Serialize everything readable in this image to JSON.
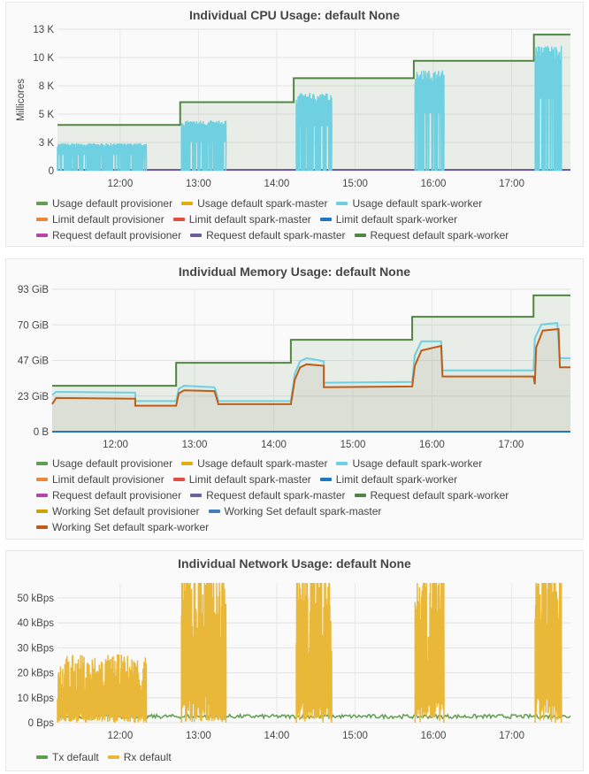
{
  "colors": {
    "green": "#629e51",
    "yellow": "#e5ac0e",
    "cyan": "#6ed0e0",
    "orange": "#ef843c",
    "red": "#e24d42",
    "blue": "#1f78c1",
    "magenta": "#ba43a9",
    "purple": "#705da0",
    "dkgreen": "#508642",
    "gold": "#cca300",
    "steel": "#447ebc",
    "rust": "#c15c17",
    "netYellow": "#eab839"
  },
  "chart_data": [
    {
      "type": "line",
      "title": "Individual CPU Usage: default None",
      "ylabel": "Millicores",
      "ylim": [
        0,
        13000
      ],
      "yticks": [
        "0",
        "3 K",
        "5 K",
        "8 K",
        "10 K",
        "13 K"
      ],
      "xticks": [
        "12:00",
        "13:00",
        "14:00",
        "15:00",
        "16:00",
        "17:00"
      ],
      "xrange": [
        "11:12",
        "17:45"
      ],
      "legend": [
        [
          {
            "name": "Usage default provisioner",
            "color": "green"
          },
          {
            "name": "Usage default spark-master",
            "color": "yellow"
          },
          {
            "name": "Usage default spark-worker",
            "color": "cyan"
          }
        ],
        [
          {
            "name": "Limit default provisioner",
            "color": "orange"
          },
          {
            "name": "Limit default spark-master",
            "color": "red"
          },
          {
            "name": "Limit default spark-worker",
            "color": "blue"
          }
        ],
        [
          {
            "name": "Request default provisioner",
            "color": "magenta"
          },
          {
            "name": "Request default spark-master",
            "color": "purple"
          },
          {
            "name": "Request default spark-worker",
            "color": "dkgreen"
          }
        ]
      ],
      "series": [
        {
          "name": "Request default spark-worker",
          "color": "dkgreen",
          "fill": true,
          "steps": [
            [
              "11:12",
              4200
            ],
            [
              "12:46",
              6300
            ],
            [
              "14:13",
              8500
            ],
            [
              "15:45",
              10100
            ],
            [
              "17:17",
              12500
            ],
            [
              "17:45",
              12500
            ]
          ]
        },
        {
          "name": "Usage default spark-worker",
          "color": "cyan",
          "bursts": [
            [
              "11:12",
              "12:20",
              2400
            ],
            [
              "12:47",
              "13:21",
              4400
            ],
            [
              "14:15",
              "14:42",
              6800
            ],
            [
              "15:46",
              "16:08",
              8800
            ],
            [
              "17:18",
              "17:38",
              11000
            ]
          ]
        }
      ]
    },
    {
      "type": "line",
      "title": "Individual Memory Usage: default None",
      "ylabel": "",
      "ylim": [
        0,
        93
      ],
      "yticks": [
        "0 B",
        "23 GiB",
        "47 GiB",
        "70 GiB",
        "93 GiB"
      ],
      "xticks": [
        "12:00",
        "13:00",
        "14:00",
        "15:00",
        "16:00",
        "17:00"
      ],
      "xrange": [
        "11:12",
        "17:45"
      ],
      "legend": [
        [
          {
            "name": "Usage default provisioner",
            "color": "green"
          },
          {
            "name": "Usage default spark-master",
            "color": "yellow"
          },
          {
            "name": "Usage default spark-worker",
            "color": "cyan"
          }
        ],
        [
          {
            "name": "Limit default provisioner",
            "color": "orange"
          },
          {
            "name": "Limit default spark-master",
            "color": "red"
          },
          {
            "name": "Limit default spark-worker",
            "color": "blue"
          }
        ],
        [
          {
            "name": "Request default provisioner",
            "color": "magenta"
          },
          {
            "name": "Request default spark-master",
            "color": "purple"
          },
          {
            "name": "Request default spark-worker",
            "color": "dkgreen"
          }
        ],
        [
          {
            "name": "Working Set default provisioner",
            "color": "gold"
          },
          {
            "name": "Working Set default spark-master",
            "color": "steel"
          }
        ],
        [
          {
            "name": "Working Set default spark-worker",
            "color": "rust"
          }
        ]
      ],
      "series": [
        {
          "name": "Request default spark-worker",
          "color": "dkgreen",
          "fill": true,
          "steps": [
            [
              "11:12",
              30
            ],
            [
              "12:46",
              45
            ],
            [
              "14:13",
              60
            ],
            [
              "15:45",
              75
            ],
            [
              "17:17",
              89
            ],
            [
              "17:45",
              89
            ]
          ]
        },
        {
          "name": "Usage default spark-worker",
          "color": "cyan",
          "points": [
            [
              "11:12",
              24
            ],
            [
              "11:15",
              26
            ],
            [
              "12:15",
              25.5
            ],
            [
              "12:15",
              20
            ],
            [
              "12:46",
              20
            ],
            [
              "12:48",
              28
            ],
            [
              "12:52",
              30
            ],
            [
              "13:15",
              29
            ],
            [
              "13:16",
              27
            ],
            [
              "13:18",
              20
            ],
            [
              "14:13",
              20
            ],
            [
              "14:16",
              38
            ],
            [
              "14:20",
              46
            ],
            [
              "14:25",
              48
            ],
            [
              "14:38",
              46
            ],
            [
              "14:38",
              32
            ],
            [
              "15:45",
              32.5
            ],
            [
              "15:47",
              50
            ],
            [
              "15:52",
              59
            ],
            [
              "16:07",
              59
            ],
            [
              "16:08",
              40
            ],
            [
              "17:17",
              40
            ],
            [
              "17:18",
              61
            ],
            [
              "17:23",
              70
            ],
            [
              "17:35",
              71
            ],
            [
              "17:37",
              48
            ],
            [
              "17:45",
              48
            ]
          ]
        },
        {
          "name": "Working Set default spark-worker",
          "color": "rust",
          "points": [
            [
              "11:12",
              18
            ],
            [
              "11:15",
              22
            ],
            [
              "12:15",
              21.5
            ],
            [
              "12:15",
              17
            ],
            [
              "12:46",
              17
            ],
            [
              "12:48",
              25
            ],
            [
              "12:52",
              27
            ],
            [
              "13:15",
              26.5
            ],
            [
              "13:16",
              24
            ],
            [
              "13:18",
              18
            ],
            [
              "14:13",
              18
            ],
            [
              "14:16",
              34
            ],
            [
              "14:20",
              42
            ],
            [
              "14:25",
              44
            ],
            [
              "14:38",
              43
            ],
            [
              "14:38",
              29
            ],
            [
              "15:45",
              29.5
            ],
            [
              "15:47",
              43
            ],
            [
              "15:52",
              53
            ],
            [
              "16:07",
              56
            ],
            [
              "16:08",
              36
            ],
            [
              "17:17",
              36
            ],
            [
              "17:18",
              31
            ],
            [
              "17:19",
              55
            ],
            [
              "17:24",
              66
            ],
            [
              "17:36",
              67
            ],
            [
              "17:37",
              42
            ],
            [
              "17:45",
              42
            ]
          ]
        },
        {
          "name": "Limit default spark-worker",
          "color": "blue",
          "points": [
            [
              "11:12",
              0
            ],
            [
              "17:45",
              0
            ]
          ]
        }
      ]
    },
    {
      "type": "line",
      "title": "Individual Network Usage: default None",
      "ylabel": "",
      "ylim": [
        0,
        56
      ],
      "yticks": [
        "0 Bps",
        "10 kBps",
        "20 kBps",
        "30 kBps",
        "40 kBps",
        "50 kBps"
      ],
      "ytickvals": [
        0,
        10,
        20,
        30,
        40,
        50
      ],
      "xticks": [
        "12:00",
        "13:00",
        "14:00",
        "15:00",
        "16:00",
        "17:00"
      ],
      "xrange": [
        "11:12",
        "17:45"
      ],
      "legend": [
        [
          {
            "name": "Tx default",
            "color": "green"
          },
          {
            "name": "Rx default",
            "color": "netYellow"
          }
        ]
      ],
      "series": [
        {
          "name": "Tx default",
          "color": "green",
          "base": 2.5
        },
        {
          "name": "Rx default",
          "color": "netYellow",
          "bursts": [
            [
              "11:12",
              "12:20",
              22
            ],
            [
              "12:47",
              "13:21",
              56
            ],
            [
              "14:15",
              "14:42",
              56
            ],
            [
              "15:46",
              "16:08",
              56
            ],
            [
              "17:18",
              "17:38",
              56
            ]
          ]
        }
      ]
    }
  ]
}
